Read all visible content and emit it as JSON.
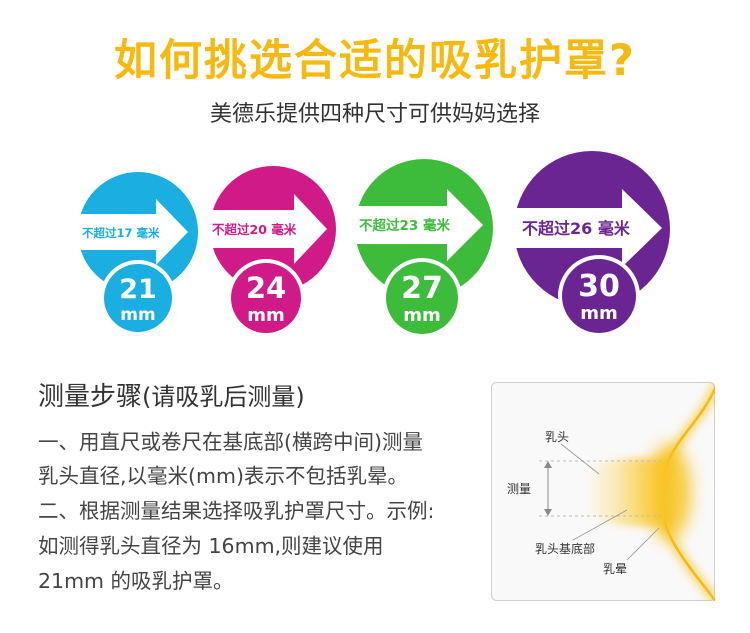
{
  "title": "如何挑选合适的吸乳护罩?",
  "subtitle": "美德乐提供四种尺寸可供妈妈选择",
  "sizes": [
    {
      "limit": "不超过17 毫米",
      "size_num": "21",
      "unit": "mm",
      "color": "#1baee1"
    },
    {
      "limit": "不超过20 毫米",
      "size_num": "24",
      "unit": "mm",
      "color": "#d01a87"
    },
    {
      "limit": "不超过23 毫米",
      "size_num": "27",
      "unit": "mm",
      "color": "#3dbb3b"
    },
    {
      "limit": "不超过26 毫米",
      "size_num": "30",
      "unit": "mm",
      "color": "#6b2592"
    }
  ],
  "steps_title": "测量步骤",
  "steps_note": "(请吸乳后测量)",
  "steps": [
    "一、用直尺或卷尺在基底部(横跨中间)测量",
    "乳头直径,以毫米(mm)表示不包括乳晕。",
    "二、根据测量结果选择吸乳护罩尺寸。示例:",
    "如测得乳头直径为 16mm,则建议使用",
    "21mm 的吸乳护罩。"
  ],
  "diagram": {
    "nipple_label": "乳头",
    "measure_label": "测量",
    "base_label": "乳头基底部",
    "areola_label": "乳晕"
  },
  "colors": {
    "title": "#f5b90f",
    "glow": "#f7c21a"
  }
}
